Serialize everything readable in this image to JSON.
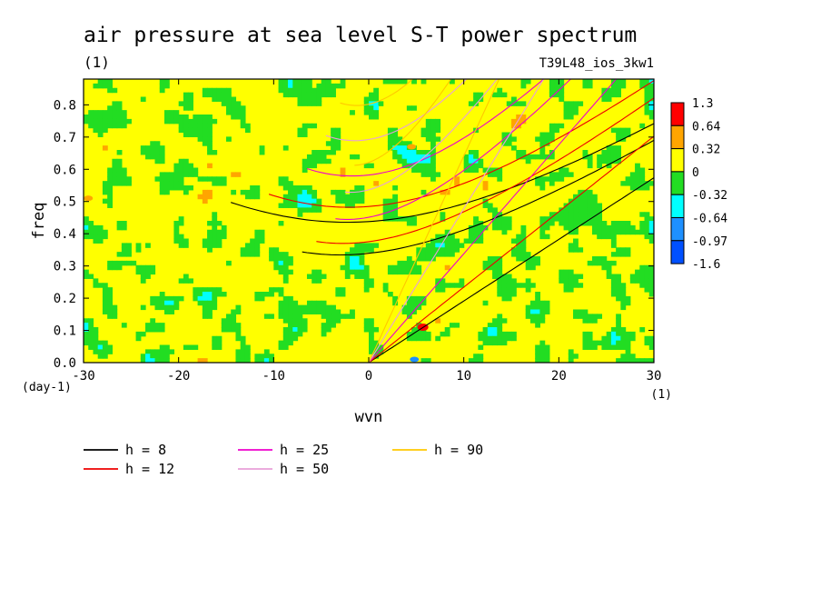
{
  "chart_data": {
    "type": "heatmap",
    "title": "air pressure at sea level S-T power spectrum",
    "subtitle_left": "(1)",
    "subtitle_right": "T39L48_ios_3kw1",
    "xlabel": "wvn",
    "ylabel": "freq",
    "x_unit": "(1)",
    "y_unit": "(day-1)",
    "xlim": [
      -30,
      30
    ],
    "ylim": [
      0,
      0.88
    ],
    "x_ticks": [
      -30,
      -20,
      -10,
      0,
      10,
      20,
      30
    ],
    "y_ticks": [
      0.0,
      0.1,
      0.2,
      0.3,
      0.4,
      0.5,
      0.6,
      0.7,
      0.8
    ],
    "colorbar": {
      "labels": [
        "1.3",
        "0.64",
        "0.32",
        "0",
        "-0.32",
        "-0.64",
        "-0.97",
        "-1.6"
      ],
      "colors": [
        "#ff0000",
        "#ffa500",
        "#ffff00",
        "#22dd22",
        "#00ffff",
        "#1e90ff",
        "#0050ff"
      ]
    },
    "field_colors": {
      "background": "#ffff00",
      "negative": "#22dd22",
      "strong_negative": "#00ffff",
      "very_negative": "#1e90ff",
      "positive": "#ffa500",
      "strong_positive": "#ff0000"
    },
    "dispersion_curves": [
      {
        "name": "h =  8",
        "h": 8,
        "color": "#000000"
      },
      {
        "name": "h = 12",
        "h": 12,
        "color": "#ee0000"
      },
      {
        "name": "h = 25",
        "h": 25,
        "color": "#ee00cc"
      },
      {
        "name": "h = 50",
        "h": 50,
        "color": "#e8a0d8"
      },
      {
        "name": "h = 90",
        "h": 90,
        "color": "#ffc800"
      }
    ]
  }
}
